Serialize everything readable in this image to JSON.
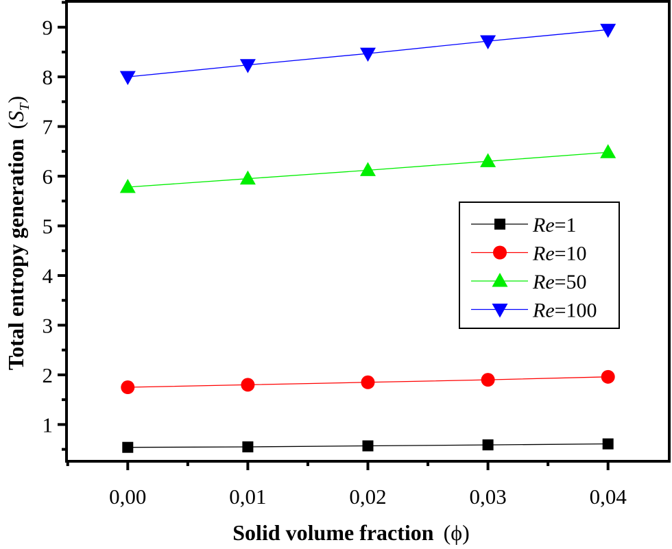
{
  "chart_data": {
    "type": "line",
    "title": "",
    "xlabel": "Solid volume fraction",
    "xlabel_symbol": "(ϕ)",
    "ylabel": "Total entropy generation",
    "ylabel_symbol_main": "S",
    "ylabel_symbol_sub": "T",
    "xlim": [
      -0.0051,
      0.0451
    ],
    "ylim": [
      0.26,
      9.52
    ],
    "x_ticks": [
      0,
      0.01,
      0.02,
      0.03,
      0.04
    ],
    "x_tick_labels": [
      "0,00",
      "0,01",
      "0,02",
      "0,03",
      "0,04"
    ],
    "y_ticks": [
      1,
      2,
      3,
      4,
      5,
      6,
      7,
      8,
      9
    ],
    "y_tick_labels": [
      "1",
      "2",
      "3",
      "4",
      "5",
      "6",
      "7",
      "8",
      "9"
    ],
    "grid": false,
    "legend_placement": "center-right",
    "x": [
      0,
      0.01,
      0.02,
      0.03,
      0.04
    ],
    "series": [
      {
        "name_italic": "Re",
        "name_rest": "=1",
        "color": "#000000",
        "marker": "square",
        "values": [
          0.54,
          0.55,
          0.57,
          0.59,
          0.61
        ]
      },
      {
        "name_italic": "Re",
        "name_rest": "=10",
        "color": "#ff0000",
        "marker": "circle",
        "values": [
          1.75,
          1.8,
          1.85,
          1.9,
          1.96
        ]
      },
      {
        "name_italic": "Re",
        "name_rest": "=50",
        "color": "#00ee00",
        "marker": "triangle-up",
        "values": [
          5.78,
          5.95,
          6.12,
          6.3,
          6.48
        ]
      },
      {
        "name_italic": "Re",
        "name_rest": "=100",
        "color": "#0000ff",
        "marker": "triangle-down",
        "values": [
          8.0,
          8.24,
          8.47,
          8.72,
          8.95
        ]
      }
    ]
  }
}
